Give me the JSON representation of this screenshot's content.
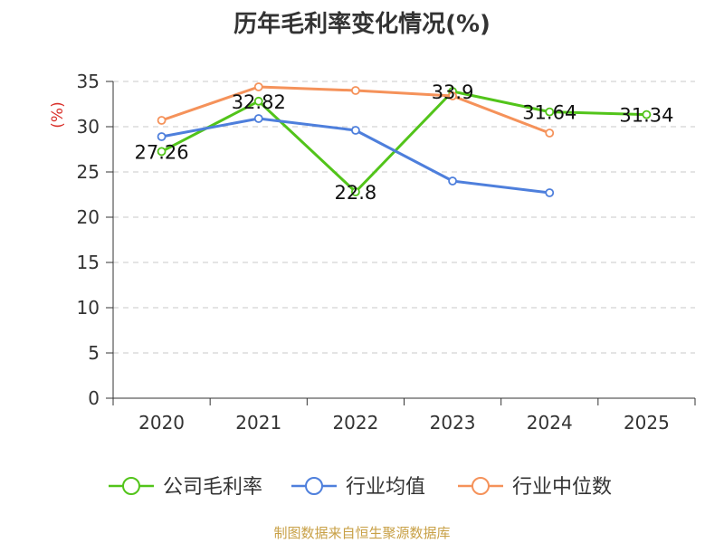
{
  "chart_data": {
    "type": "line",
    "title": "历年毛利率变化情况(%)",
    "ylabel": "(%)",
    "xlabel": "",
    "categories": [
      "2020",
      "2021",
      "2022",
      "2023",
      "2024",
      "2025"
    ],
    "ylim": [
      0,
      35
    ],
    "yticks": [
      0,
      5,
      10,
      15,
      20,
      25,
      30,
      35
    ],
    "grid": true,
    "legend_position": "bottom",
    "series": [
      {
        "name": "公司毛利率",
        "color": "#52c41a",
        "values": [
          27.26,
          32.82,
          22.8,
          33.9,
          31.64,
          31.34
        ],
        "show_labels": true
      },
      {
        "name": "行业均值",
        "color": "#4e7fdc",
        "values": [
          28.9,
          30.9,
          29.6,
          24.0,
          22.7,
          null
        ],
        "show_labels": false
      },
      {
        "name": "行业中位数",
        "color": "#f5925a",
        "values": [
          30.7,
          34.4,
          34.0,
          33.4,
          29.3,
          null
        ],
        "show_labels": false
      }
    ]
  },
  "source": "制图数据来自恒生聚源数据库",
  "colors": {
    "ylabel": "#d9302a",
    "grid": "#c8c8c8",
    "axis": "#333333",
    "source": "#c8a046"
  }
}
